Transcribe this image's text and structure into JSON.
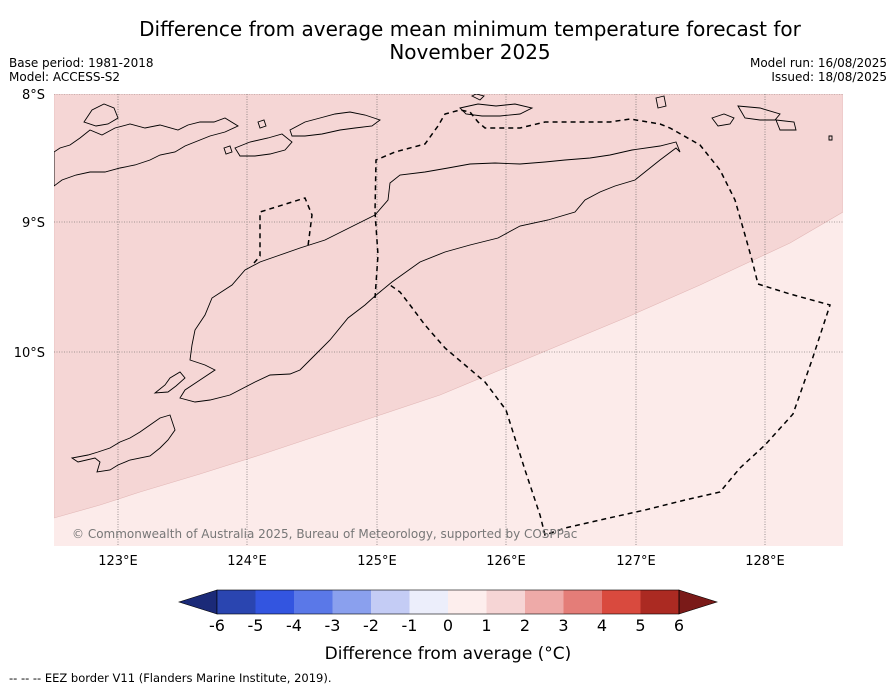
{
  "title_line1": "Difference from average mean minimum temperature forecast for",
  "title_line2": "November 2025",
  "base_period": "Base period: 1981-2018",
  "model": "Model: ACCESS-S2",
  "model_run": "Model run: 16/08/2025",
  "issued": "Issued: 18/08/2025",
  "copyright": "© Commonwealth of Australia 2025, Bureau of Meteorology, supported by COSPPac",
  "lat_labels": [
    "8°S",
    "9°S",
    "10°S"
  ],
  "lon_labels": [
    "123°E",
    "124°E",
    "125°E",
    "126°E",
    "127°E",
    "128°E"
  ],
  "colorbar": {
    "ticks": [
      "-6",
      "-5",
      "-4",
      "-3",
      "-2",
      "-1",
      "0",
      "1",
      "2",
      "3",
      "4",
      "5",
      "6"
    ],
    "title": "Difference from average (°C)",
    "colors": [
      "#1b2a78",
      "#2a45b0",
      "#3355e0",
      "#5a78e8",
      "#8aa0ee",
      "#c4ccf5",
      "#eceefb",
      "#fdeeed",
      "#f6d5d5",
      "#eeaaa8",
      "#e47d78",
      "#d94a3e",
      "#ab2a22",
      "#7a1a18"
    ]
  },
  "legend_footer": "--  --  -- EEZ border V11 (Flanders Marine Institute, 2019).",
  "map": {
    "region_colors": {
      "zone_1_to_2": "#f5d6d5",
      "zone_0_to_1": "#fcebea"
    }
  }
}
